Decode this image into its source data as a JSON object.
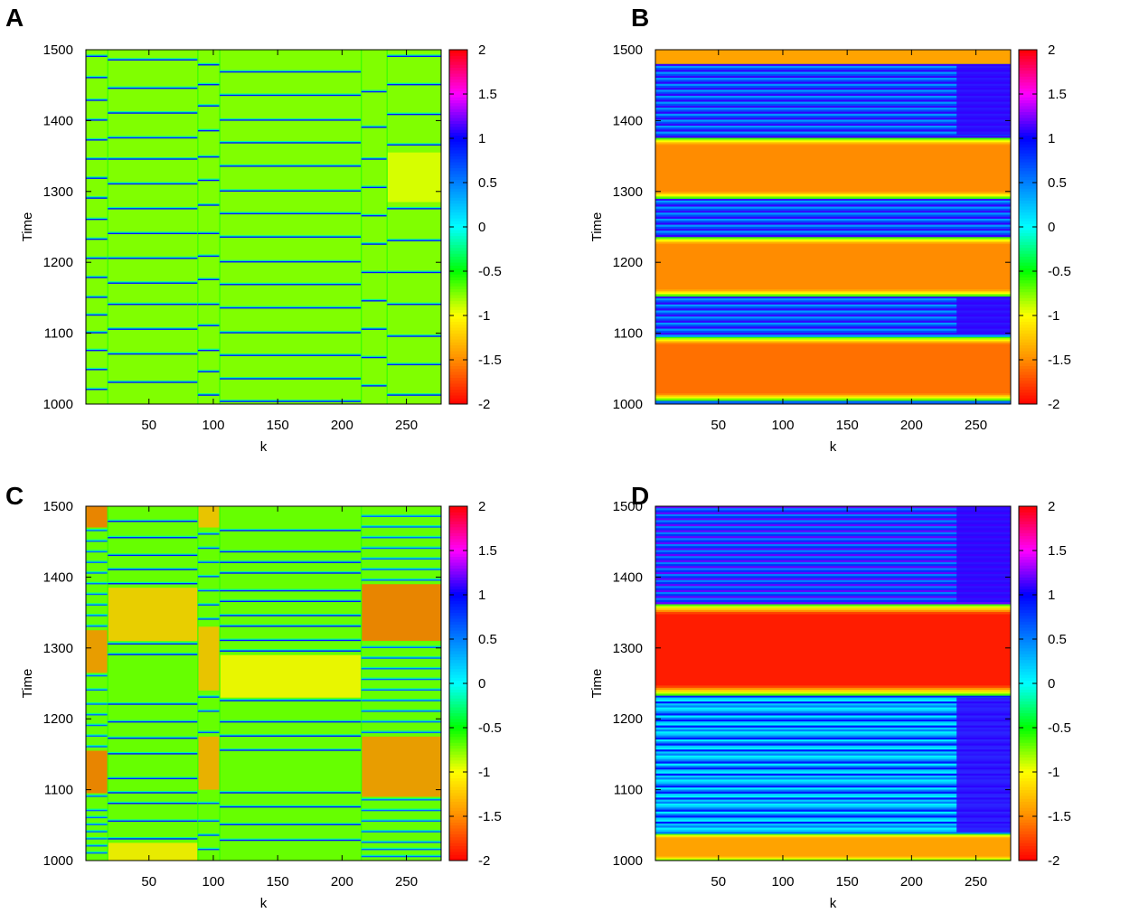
{
  "colorbar": {
    "stops": [
      {
        "v": -2.0,
        "color": "#ff0000"
      },
      {
        "v": -1.5,
        "color": "#ff8c00"
      },
      {
        "v": -1.0,
        "color": "#ffff00"
      },
      {
        "v": -0.5,
        "color": "#00ff00"
      },
      {
        "v": 0.0,
        "color": "#00ffff"
      },
      {
        "v": 0.5,
        "color": "#0080ff"
      },
      {
        "v": 1.0,
        "color": "#0000ff"
      },
      {
        "v": 1.5,
        "color": "#ff00ff"
      },
      {
        "v": 2.0,
        "color": "#ff0000"
      }
    ]
  },
  "chart_data": [
    {
      "type": "heatmap",
      "panel_label": "A",
      "xlabel": "k",
      "ylabel": "Time",
      "xlim": [
        1,
        277
      ],
      "ylim": [
        1000,
        1500
      ],
      "xticks": [
        50,
        100,
        150,
        200,
        250
      ],
      "yticks": [
        1000,
        1100,
        1200,
        1300,
        1400,
        1500
      ],
      "zlim": [
        -2,
        2
      ],
      "cbar_ticks": [
        -2,
        -1.5,
        -1,
        -0.5,
        0,
        0.5,
        1,
        1.5,
        2
      ],
      "background": -0.75,
      "blocks": [],
      "column_groups": [
        {
          "x0": 1,
          "x1": 18,
          "lines": [
            1020,
            1048,
            1075,
            1100,
            1125,
            1150,
            1178,
            1205,
            1232,
            1260,
            1290,
            1318,
            1345,
            1372,
            1400,
            1428,
            1460,
            1490
          ],
          "value": 0.9
        },
        {
          "x0": 18,
          "x1": 88,
          "lines": [
            1030,
            1070,
            1105,
            1140,
            1170,
            1205,
            1240,
            1275,
            1310,
            1345,
            1375,
            1410,
            1445,
            1485
          ],
          "value": 0.9
        },
        {
          "x0": 88,
          "x1": 105,
          "lines": [
            1012,
            1045,
            1075,
            1110,
            1140,
            1175,
            1208,
            1240,
            1280,
            1315,
            1348,
            1385,
            1420,
            1450,
            1478
          ],
          "value": 0.9
        },
        {
          "x0": 105,
          "x1": 215,
          "lines": [
            1003,
            1035,
            1068,
            1100,
            1135,
            1168,
            1200,
            1235,
            1268,
            1300,
            1335,
            1368,
            1400,
            1435,
            1468
          ],
          "value": 0.9
        },
        {
          "x0": 215,
          "x1": 235,
          "lines": [
            1025,
            1065,
            1105,
            1145,
            1185,
            1225,
            1265,
            1305,
            1345,
            1390,
            1440
          ],
          "value": 0.9
        },
        {
          "x0": 235,
          "x1": 277,
          "lines": [
            1012,
            1055,
            1095,
            1140,
            1185,
            1230,
            1275,
            1365,
            1408,
            1450,
            1490
          ],
          "value": 0.9
        }
      ],
      "column_tints": [
        {
          "x0": 235,
          "x1": 277,
          "y0": 1285,
          "y1": 1355,
          "value": -0.95
        }
      ]
    },
    {
      "type": "heatmap",
      "panel_label": "B",
      "xlabel": "k",
      "ylabel": "Time",
      "xlim": [
        1,
        277
      ],
      "ylim": [
        1000,
        1500
      ],
      "xticks": [
        50,
        100,
        150,
        200,
        250
      ],
      "yticks": [
        1000,
        1100,
        1200,
        1300,
        1400,
        1500
      ],
      "zlim": [
        -2,
        2
      ],
      "cbar_ticks": [
        -2,
        -1.5,
        -1,
        -0.5,
        0,
        0.5,
        1,
        1.5,
        2
      ],
      "background": -0.5,
      "blocks": [
        {
          "y0": 1000,
          "y1": 1005,
          "value": 0.6
        },
        {
          "y0": 1005,
          "y1": 1095,
          "value": -1.6,
          "edge": 10
        },
        {
          "y0": 1095,
          "y1": 1152,
          "value": 0.6,
          "striped": true
        },
        {
          "y0": 1152,
          "y1": 1236,
          "value": -1.5,
          "edge": 10
        },
        {
          "y0": 1236,
          "y1": 1290,
          "value": 0.6,
          "striped": true
        },
        {
          "y0": 1290,
          "y1": 1376,
          "value": -1.5,
          "edge": 10
        },
        {
          "y0": 1376,
          "y1": 1480,
          "value": 0.6,
          "striped": true
        },
        {
          "y0": 1480,
          "y1": 1500,
          "value": -1.4
        }
      ],
      "column_groups": [],
      "column_tints": [
        {
          "x0": 235,
          "x1": 277,
          "y0": 1100,
          "y1": 1150,
          "value": 1.1
        },
        {
          "x0": 235,
          "x1": 277,
          "y0": 1380,
          "y1": 1478,
          "value": 1.1
        }
      ]
    },
    {
      "type": "heatmap",
      "panel_label": "C",
      "xlabel": "k",
      "ylabel": "Time",
      "xlim": [
        1,
        277
      ],
      "ylim": [
        1000,
        1500
      ],
      "xticks": [
        50,
        100,
        150,
        200,
        250
      ],
      "yticks": [
        1000,
        1100,
        1200,
        1300,
        1400,
        1500
      ],
      "zlim": [
        -2,
        2
      ],
      "cbar_ticks": [
        -2,
        -1.5,
        -1,
        -0.5,
        0,
        0.5,
        1,
        1.5,
        2
      ],
      "background": -0.7,
      "blocks": [],
      "column_groups": [
        {
          "x0": 1,
          "x1": 18,
          "lines": [
            1010,
            1020,
            1030,
            1040,
            1050,
            1060,
            1070,
            1090,
            1160,
            1175,
            1190,
            1205,
            1220,
            1240,
            1260,
            1330,
            1345,
            1360,
            1375,
            1390,
            1405,
            1420,
            1435,
            1450,
            1465
          ],
          "value": 0.6
        },
        {
          "x0": 18,
          "x1": 88,
          "lines": [
            1030,
            1055,
            1080,
            1095,
            1115,
            1150,
            1172,
            1195,
            1220,
            1290,
            1305,
            1390,
            1410,
            1430,
            1455,
            1478
          ],
          "value": 0.9
        },
        {
          "x0": 88,
          "x1": 105,
          "lines": [
            1015,
            1035,
            1055,
            1080,
            1180,
            1210,
            1230,
            1340,
            1360,
            1380,
            1400,
            1420,
            1440,
            1460
          ],
          "value": 0.7
        },
        {
          "x0": 105,
          "x1": 215,
          "lines": [
            1028,
            1050,
            1075,
            1095,
            1155,
            1175,
            1195,
            1225,
            1295,
            1310,
            1330,
            1345,
            1365,
            1380,
            1405,
            1420,
            1435,
            1465
          ],
          "value": 0.9
        },
        {
          "x0": 215,
          "x1": 277,
          "lines": [
            1005,
            1015,
            1025,
            1040,
            1055,
            1070,
            1085,
            1180,
            1195,
            1210,
            1225,
            1240,
            1255,
            1270,
            1285,
            1300,
            1395,
            1410,
            1425,
            1440,
            1455,
            1470,
            1485
          ],
          "value": 0.6
        }
      ],
      "column_tints": [
        {
          "x0": 1,
          "x1": 18,
          "y0": 1095,
          "y1": 1155,
          "value": -1.6
        },
        {
          "x0": 1,
          "x1": 18,
          "y0": 1265,
          "y1": 1325,
          "value": -1.5
        },
        {
          "x0": 1,
          "x1": 18,
          "y0": 1470,
          "y1": 1500,
          "value": -1.6
        },
        {
          "x0": 18,
          "x1": 88,
          "y0": 1000,
          "y1": 1025,
          "value": -1.1
        },
        {
          "x0": 18,
          "x1": 88,
          "y0": 1310,
          "y1": 1385,
          "value": -1.25
        },
        {
          "x0": 88,
          "x1": 105,
          "y0": 1100,
          "y1": 1175,
          "value": -1.4
        },
        {
          "x0": 88,
          "x1": 105,
          "y0": 1240,
          "y1": 1330,
          "value": -1.3
        },
        {
          "x0": 88,
          "x1": 105,
          "y0": 1470,
          "y1": 1500,
          "value": -1.3
        },
        {
          "x0": 105,
          "x1": 215,
          "y0": 1230,
          "y1": 1290,
          "value": -1.05
        },
        {
          "x0": 215,
          "x1": 277,
          "y0": 1090,
          "y1": 1175,
          "value": -1.5
        },
        {
          "x0": 215,
          "x1": 277,
          "y0": 1310,
          "y1": 1390,
          "value": -1.6
        }
      ]
    },
    {
      "type": "heatmap",
      "panel_label": "D",
      "xlabel": "k",
      "ylabel": "Time",
      "xlim": [
        1,
        277
      ],
      "ylim": [
        1000,
        1500
      ],
      "xticks": [
        50,
        100,
        150,
        200,
        250
      ],
      "yticks": [
        1000,
        1100,
        1200,
        1300,
        1400,
        1500
      ],
      "zlim": [
        -2,
        2
      ],
      "cbar_ticks": [
        -2,
        -1.5,
        -1,
        -0.5,
        0,
        0.5,
        1,
        1.5,
        2
      ],
      "background": 0.5,
      "blocks": [
        {
          "y0": 1000,
          "y1": 1038,
          "value": -1.4,
          "edge": 6
        },
        {
          "y0": 1038,
          "y1": 1233,
          "value": 0.4,
          "striped": true,
          "cyan_mix": true
        },
        {
          "y0": 1233,
          "y1": 1362,
          "value": -1.9,
          "edge": 14
        },
        {
          "y0": 1362,
          "y1": 1500,
          "value": 0.7,
          "striped": true
        }
      ],
      "column_groups": [],
      "column_tints": [
        {
          "x0": 235,
          "x1": 277,
          "y0": 1040,
          "y1": 1230,
          "value": 1.1
        },
        {
          "x0": 235,
          "x1": 277,
          "y0": 1365,
          "y1": 1500,
          "value": 1.1
        }
      ]
    }
  ]
}
